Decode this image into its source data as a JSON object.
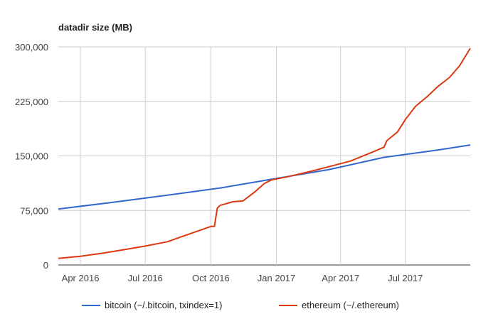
{
  "chart_data": {
    "type": "line",
    "title": "datadir size (MB)",
    "xlabel": "",
    "ylabel": "",
    "ylim": [
      0,
      300000
    ],
    "yticks": [
      0,
      75000,
      150000,
      225000,
      300000
    ],
    "ytick_labels": [
      "0",
      "75,000",
      "150,000",
      "225,000",
      "300,000"
    ],
    "xlim": [
      "2016-03-01",
      "2017-09-30"
    ],
    "xticks": [
      "2016-04-01",
      "2016-07-01",
      "2016-10-01",
      "2017-01-01",
      "2017-04-01",
      "2017-07-01"
    ],
    "xtick_labels": [
      "Apr 2016",
      "Jul 2016",
      "Oct 2016",
      "Jan 2017",
      "Apr 2017",
      "Jul 2017"
    ],
    "grid": true,
    "legend_position": "bottom",
    "colors": {
      "bitcoin": "#3366cc",
      "ethereum": "#dc3912"
    },
    "series": [
      {
        "name": "bitcoin (~/.bitcoin, txindex=1)",
        "color": "#3366cc",
        "points": [
          [
            "2016-03-01",
            77000
          ],
          [
            "2016-05-15",
            86000
          ],
          [
            "2016-08-01",
            96000
          ],
          [
            "2016-10-15",
            106000
          ],
          [
            "2017-01-01",
            119000
          ],
          [
            "2017-03-15",
            131000
          ],
          [
            "2017-06-01",
            148000
          ],
          [
            "2017-08-15",
            158000
          ],
          [
            "2017-09-30",
            165000
          ]
        ]
      },
      {
        "name": "ethereum (~/.ethereum)",
        "color": "#dc3912",
        "points": [
          [
            "2016-03-01",
            9000
          ],
          [
            "2016-04-01",
            12000
          ],
          [
            "2016-05-01",
            16000
          ],
          [
            "2016-06-01",
            21000
          ],
          [
            "2016-07-01",
            26000
          ],
          [
            "2016-08-01",
            32000
          ],
          [
            "2016-10-01",
            53000
          ],
          [
            "2016-10-06",
            53000
          ],
          [
            "2016-10-10",
            78000
          ],
          [
            "2016-10-14",
            82000
          ],
          [
            "2016-11-01",
            87000
          ],
          [
            "2016-11-15",
            88000
          ],
          [
            "2016-12-01",
            100000
          ],
          [
            "2016-12-15",
            112000
          ],
          [
            "2016-12-25",
            117000
          ],
          [
            "2017-01-15",
            121000
          ],
          [
            "2017-02-15",
            128000
          ],
          [
            "2017-03-15",
            135000
          ],
          [
            "2017-04-15",
            143000
          ],
          [
            "2017-05-15",
            155000
          ],
          [
            "2017-06-01",
            162000
          ],
          [
            "2017-06-05",
            171000
          ],
          [
            "2017-06-20",
            183000
          ],
          [
            "2017-07-01",
            200000
          ],
          [
            "2017-07-15",
            218000
          ],
          [
            "2017-08-01",
            232000
          ],
          [
            "2017-08-15",
            245000
          ],
          [
            "2017-09-01",
            258000
          ],
          [
            "2017-09-15",
            274000
          ],
          [
            "2017-09-30",
            298000
          ]
        ]
      }
    ]
  }
}
